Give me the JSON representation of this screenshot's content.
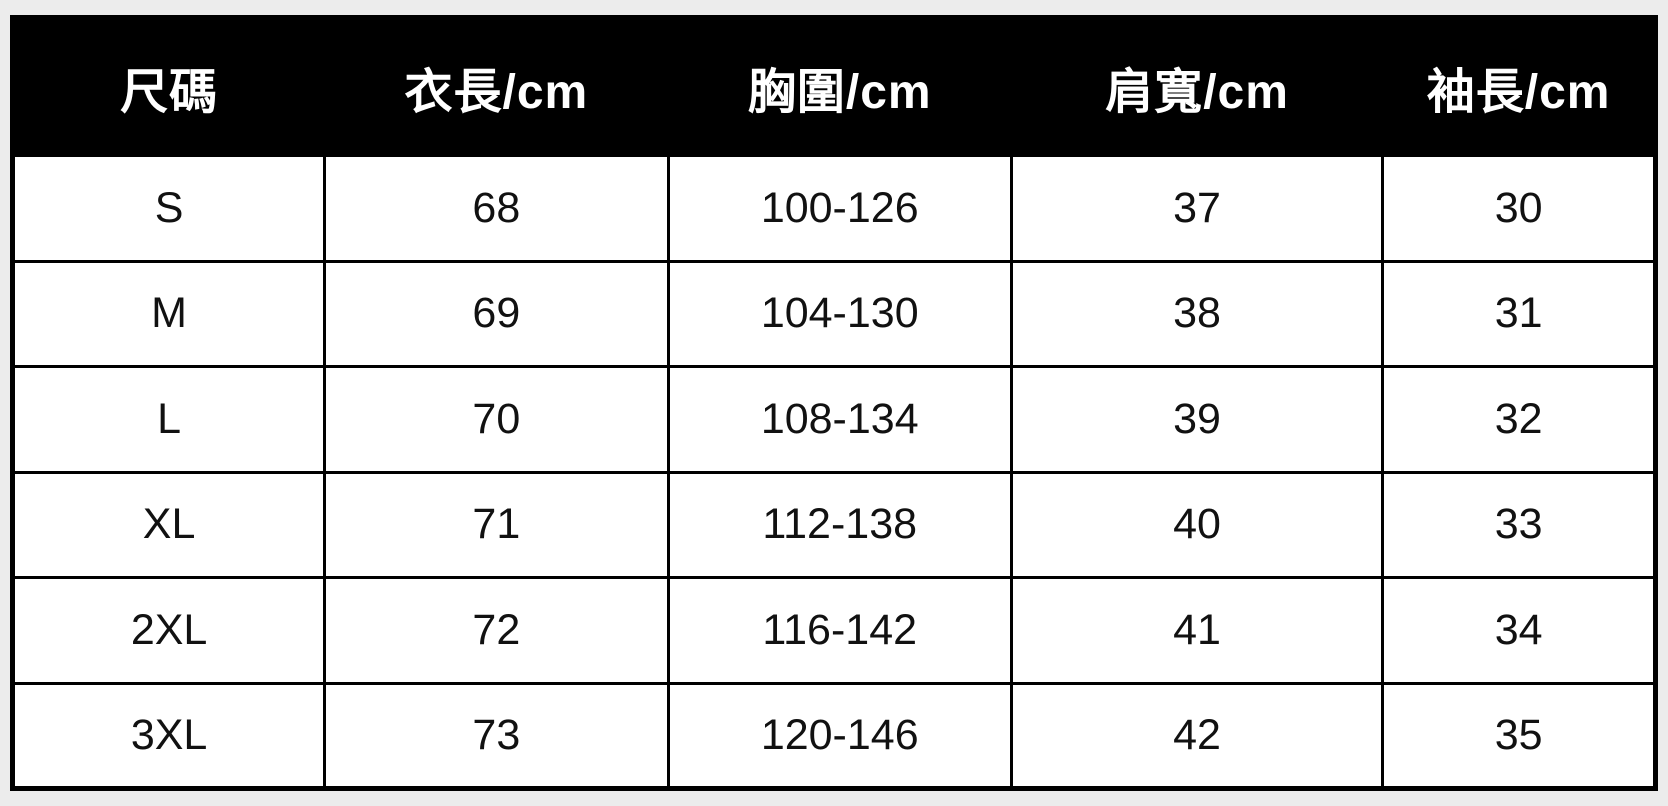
{
  "page": {
    "background_color": "#ececec",
    "description": "garment size chart table"
  },
  "colors": {
    "header_bg": "#000000",
    "header_text": "#ffffff",
    "cell_bg": "#ffffff",
    "cell_text": "#111111",
    "border": "#000000"
  },
  "table": {
    "headers": [
      "尺碼",
      "衣長/cm",
      "胸圍/cm",
      "肩寬/cm",
      "袖長/cm"
    ],
    "rows": [
      [
        "S",
        "68",
        "100-126",
        "37",
        "30"
      ],
      [
        "M",
        "69",
        "104-130",
        "38",
        "31"
      ],
      [
        "L",
        "70",
        "108-134",
        "39",
        "32"
      ],
      [
        "XL",
        "71",
        "112-138",
        "40",
        "33"
      ],
      [
        "2XL",
        "72",
        "116-142",
        "41",
        "34"
      ],
      [
        "3XL",
        "73",
        "120-146",
        "42",
        "35"
      ]
    ]
  },
  "chart_data": {
    "type": "table",
    "columns": [
      "尺碼",
      "衣長/cm",
      "胸圍/cm",
      "肩寬/cm",
      "袖長/cm"
    ],
    "rows": [
      {
        "尺碼": "S",
        "衣長/cm": 68,
        "胸圍/cm": "100-126",
        "肩寬/cm": 37,
        "袖長/cm": 30
      },
      {
        "尺碼": "M",
        "衣長/cm": 69,
        "胸圍/cm": "104-130",
        "肩寬/cm": 38,
        "袖長/cm": 31
      },
      {
        "尺碼": "L",
        "衣長/cm": 70,
        "胸圍/cm": "108-134",
        "肩寬/cm": 39,
        "袖長/cm": 32
      },
      {
        "尺碼": "XL",
        "衣長/cm": 71,
        "胸圍/cm": "112-138",
        "肩寬/cm": 40,
        "袖長/cm": 33
      },
      {
        "尺碼": "2XL",
        "衣長/cm": 72,
        "胸圍/cm": "116-142",
        "肩寬/cm": 41,
        "袖長/cm": 34
      },
      {
        "尺碼": "3XL",
        "衣長/cm": 73,
        "胸圍/cm": "120-146",
        "肩寬/cm": 42,
        "袖長/cm": 35
      }
    ]
  }
}
